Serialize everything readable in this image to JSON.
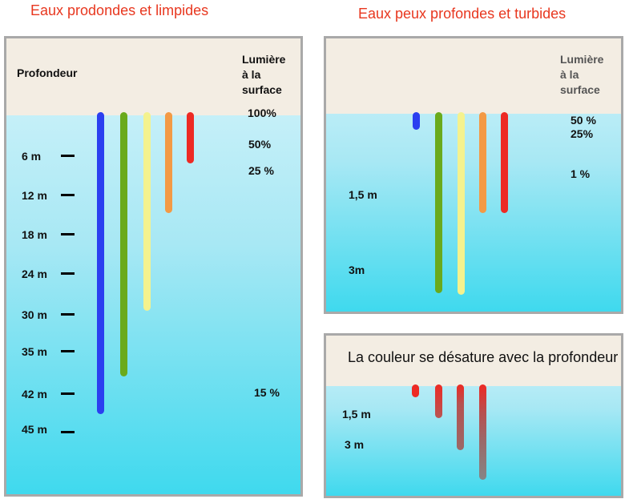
{
  "titles": {
    "left": "Eaux prodondes et limpides",
    "right": "Eaux peux profondes et turbides"
  },
  "left_panel": {
    "depth_header": "Profondeur",
    "light_header": [
      "Lumière",
      "à la",
      "surface"
    ],
    "depths": [
      "6 m",
      "12 m",
      "18 m",
      "24 m",
      "30 m",
      "35 m",
      "42 m",
      "45 m"
    ],
    "percents": [
      "100%",
      "50%",
      "25 %",
      "15 %"
    ],
    "bars": [
      {
        "color": "blue",
        "hex": "#2b3ff0"
      },
      {
        "color": "green",
        "hex": "#6aaa1c"
      },
      {
        "color": "yellow",
        "hex": "#f4f28e"
      },
      {
        "color": "orange",
        "hex": "#f39a45"
      },
      {
        "color": "red",
        "hex": "#ed2a24"
      }
    ]
  },
  "right_panel": {
    "light_header": [
      "Lumière",
      "à la",
      "surface"
    ],
    "percents": [
      "50 %",
      "25%",
      "1 %"
    ],
    "depths": [
      "1,5 m",
      "3m"
    ],
    "bars": [
      {
        "color": "blue",
        "hex": "#2b3ff0"
      },
      {
        "color": "green",
        "hex": "#6aaa1c"
      },
      {
        "color": "yellow",
        "hex": "#f4f28e"
      },
      {
        "color": "orange",
        "hex": "#f39a45"
      },
      {
        "color": "red",
        "hex": "#ed2a24"
      }
    ]
  },
  "desat_panel": {
    "caption": "La couleur se désature avec la profondeur",
    "depths": [
      "1,5 m",
      "3 m"
    ],
    "bars": [
      {
        "color": "red",
        "hex": "#ed2a24"
      },
      {
        "color": "desaturated-red",
        "hex": "#c64a47"
      },
      {
        "color": "desaturated-red-gray",
        "hex": "#a85d5c"
      },
      {
        "color": "gray-red",
        "hex": "#8e7676"
      }
    ]
  }
}
